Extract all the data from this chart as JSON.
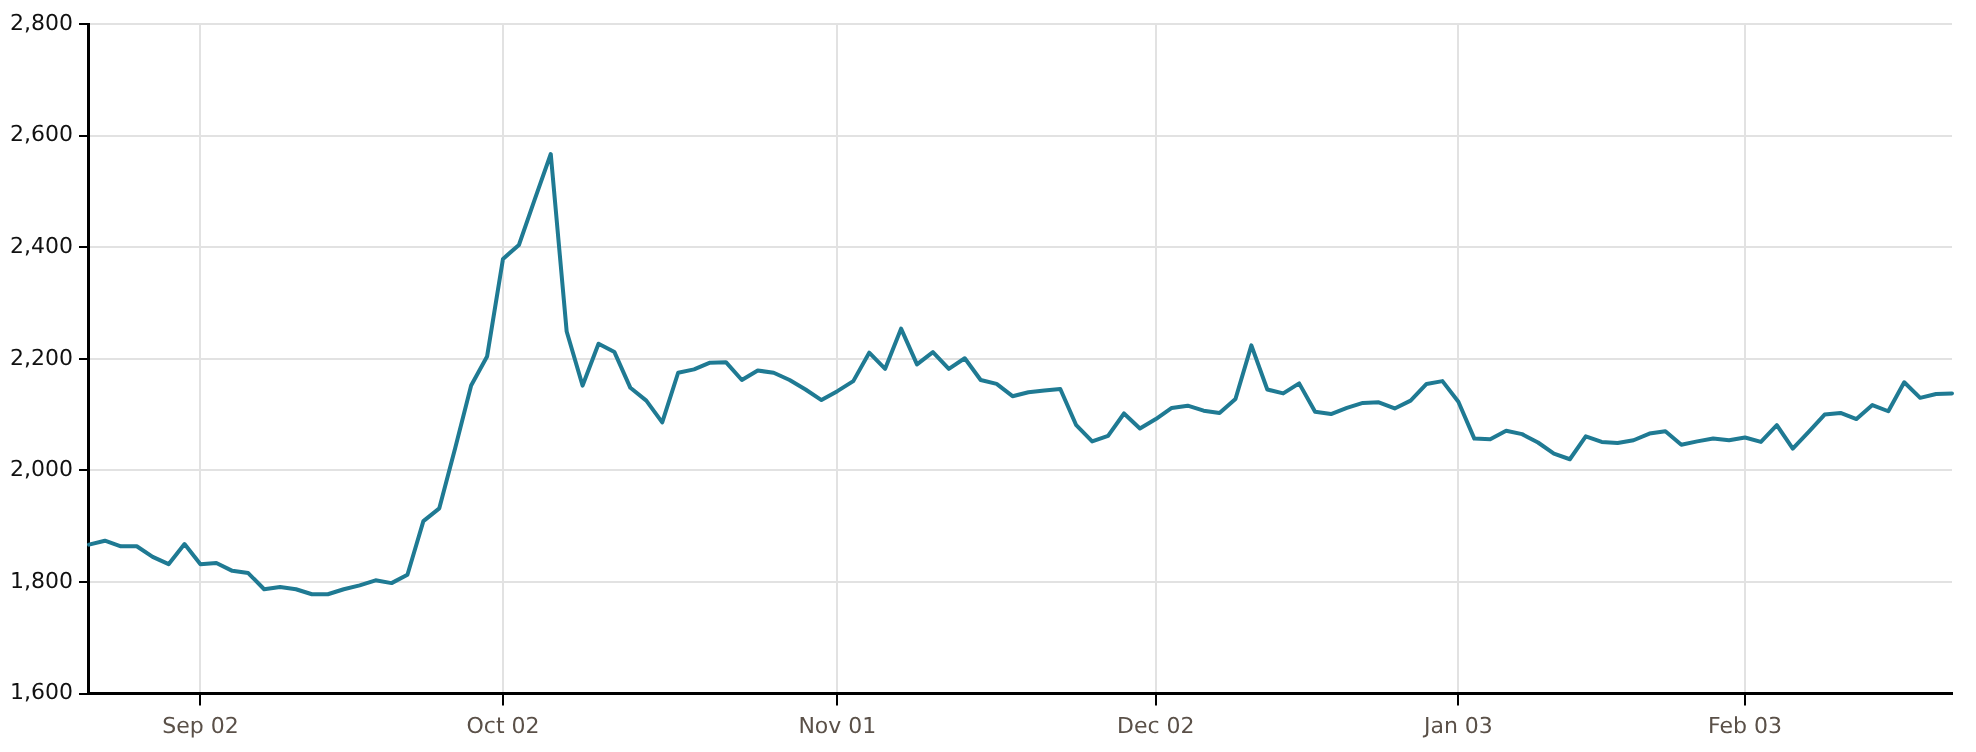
{
  "chart_data": {
    "type": "line",
    "categories": [
      null,
      null,
      null,
      null,
      null,
      null,
      null,
      "Sep 02",
      null,
      null,
      null,
      null,
      null,
      null,
      null,
      null,
      null,
      null,
      null,
      null,
      null,
      null,
      null,
      null,
      null,
      null,
      "Oct 02",
      null,
      null,
      null,
      null,
      null,
      null,
      null,
      null,
      null,
      null,
      null,
      null,
      null,
      null,
      null,
      null,
      null,
      null,
      null,
      null,
      "Nov 01",
      null,
      null,
      null,
      null,
      null,
      null,
      null,
      null,
      null,
      null,
      null,
      null,
      null,
      null,
      null,
      null,
      null,
      null,
      null,
      "Dec 02",
      null,
      null,
      null,
      null,
      null,
      null,
      null,
      null,
      null,
      null,
      null,
      null,
      null,
      null,
      null,
      null,
      null,
      null,
      "Jan 03",
      null,
      null,
      null,
      null,
      null,
      null,
      null,
      null,
      null,
      null,
      null,
      null,
      null,
      null,
      null,
      null,
      null,
      "Feb 03",
      null,
      null,
      null,
      null,
      null,
      null,
      null,
      null,
      null,
      null,
      null,
      null,
      null
    ],
    "values": [
      1867,
      1874,
      1864,
      1864,
      1845,
      1832,
      1868,
      1832,
      1834,
      1820,
      1816,
      1787,
      1791,
      1787,
      1778,
      1778,
      1787,
      1794,
      1803,
      1798,
      1813,
      1909,
      1932,
      2040,
      2152,
      2204,
      2379,
      2404,
      2486,
      2567,
      2249,
      2152,
      2227,
      2212,
      2148,
      2125,
      2086,
      2175,
      2181,
      2193,
      2194,
      2162,
      2179,
      2175,
      2162,
      2145,
      2126,
      2142,
      2160,
      2211,
      2182,
      2254,
      2190,
      2212,
      2182,
      2201,
      2162,
      2155,
      2133,
      2140,
      2143,
      2146,
      2081,
      2052,
      2062,
      2102,
      2075,
      2092,
      2112,
      2116,
      2107,
      2103,
      2128,
      2224,
      2145,
      2138,
      2156,
      2105,
      2101,
      2112,
      2121,
      2122,
      2111,
      2125,
      2155,
      2160,
      2123,
      2057,
      2056,
      2071,
      2065,
      2050,
      2030,
      2020,
      2061,
      2051,
      2049,
      2054,
      2066,
      2070,
      2046,
      2052,
      2057,
      2054,
      2059,
      2051,
      2081,
      2039,
      2069,
      2100,
      2103,
      2092,
      2117,
      2106,
      2158,
      2130,
      2137,
      2138
    ],
    "color": "#1f7a93",
    "ylim": [
      1600,
      2800
    ],
    "yticks": [
      {
        "value": 1600,
        "label": "1,600"
      },
      {
        "value": 1800,
        "label": "1,800"
      },
      {
        "value": 2000,
        "label": "2,000"
      },
      {
        "value": 2200,
        "label": "2,200"
      },
      {
        "value": 2400,
        "label": "2,400"
      },
      {
        "value": 2600,
        "label": "2,600"
      },
      {
        "value": 2800,
        "label": "2,800"
      }
    ],
    "grid": true,
    "marker": "none",
    "line_style": "solid"
  }
}
